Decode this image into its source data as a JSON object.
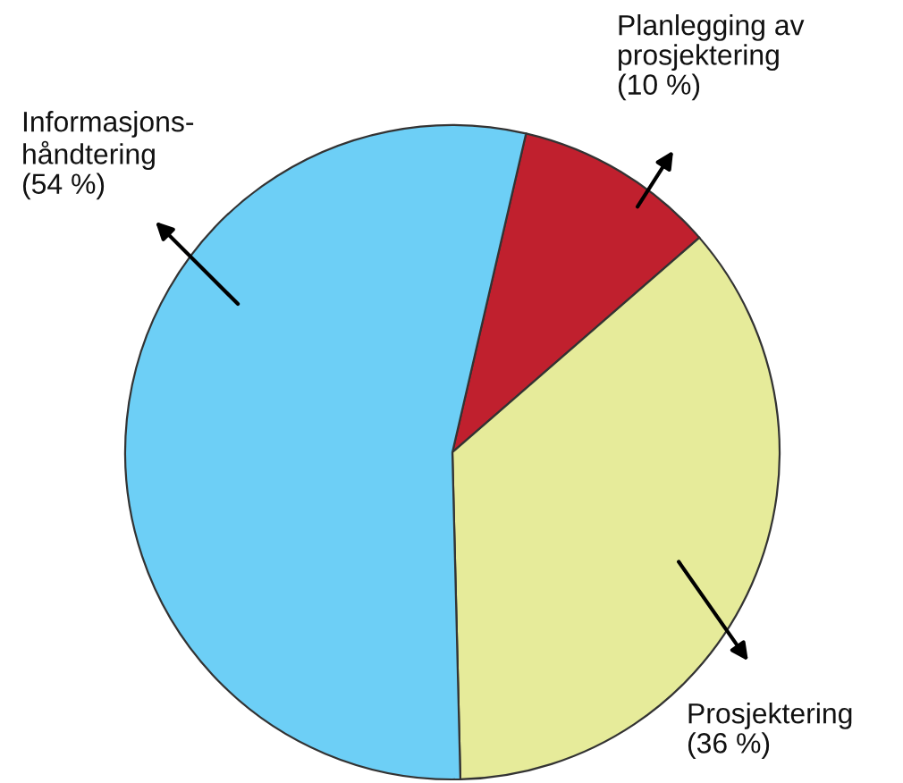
{
  "chart_data": {
    "type": "pie",
    "categories": [
      "Planlegging av\nprosjektering",
      "Prosjektering",
      "Informasjons-\nhåndtering"
    ],
    "values": [
      10,
      36,
      54
    ],
    "value_labels": [
      "(10 %)",
      "(36 %)",
      "(54 %)"
    ],
    "colors": [
      "#c0202e",
      "#e6eb9a",
      "#6dcff6"
    ]
  }
}
